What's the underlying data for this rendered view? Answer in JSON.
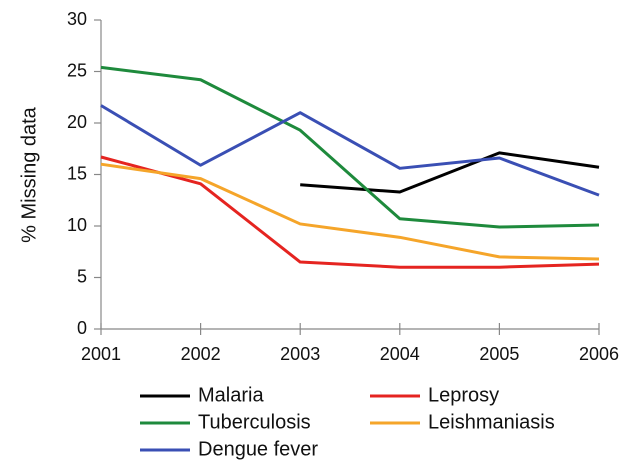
{
  "chart_data": {
    "type": "line",
    "y_label": "% Missing data",
    "x": [
      2001,
      2002,
      2003,
      2004,
      2005,
      2006
    ],
    "xlim": [
      2001,
      2006
    ],
    "xticks": [
      2001,
      2002,
      2003,
      2004,
      2005,
      2006
    ],
    "ylim": [
      0,
      30
    ],
    "yticks": [
      0,
      5,
      10,
      15,
      20,
      25,
      30
    ],
    "grid": false,
    "legend": "bottom",
    "series": [
      {
        "name": "Malaria",
        "color": "#000000",
        "values": [
          null,
          null,
          14.0,
          13.3,
          17.1,
          15.7
        ]
      },
      {
        "name": "Leprosy",
        "color": "#e52420",
        "values": [
          16.7,
          14.1,
          6.5,
          6.0,
          6.0,
          6.3
        ]
      },
      {
        "name": "Tuberculosis",
        "color": "#1e8a3c",
        "values": [
          25.4,
          24.2,
          19.3,
          10.7,
          9.9,
          10.1
        ]
      },
      {
        "name": "Leishmaniasis",
        "color": "#f5a52a",
        "values": [
          16.0,
          14.6,
          10.2,
          8.9,
          7.0,
          6.8
        ]
      },
      {
        "name": "Dengue fever",
        "color": "#3a4fb4",
        "values": [
          21.7,
          15.9,
          21.0,
          15.6,
          16.6,
          13.0
        ]
      }
    ]
  }
}
